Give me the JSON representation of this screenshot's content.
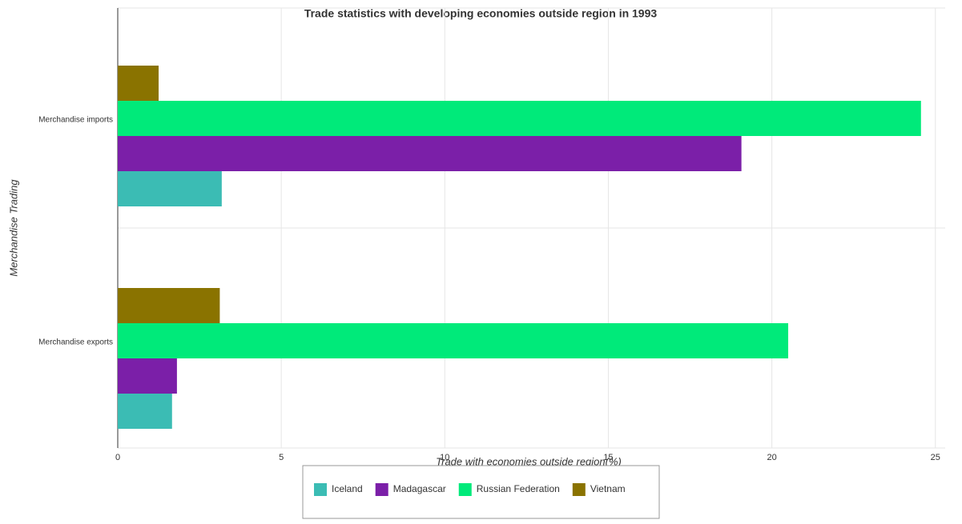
{
  "chart_data": {
    "type": "hbar",
    "title": "Trade statistics with developing economies outside region in 1993",
    "x_label": "Trade with economies outside region(%)",
    "y_label": "Merchandise Trading",
    "categories": [
      "Merchandise exports",
      "Merchandise imports"
    ],
    "series": [
      {
        "name": "Iceland",
        "color": "#3bbcb4",
        "values": [
          1.66,
          3.18
        ]
      },
      {
        "name": "Madagascar",
        "color": "#7b1fa8",
        "values": [
          1.81,
          19.07
        ]
      },
      {
        "name": "Russian Federation",
        "color": "#00ea7a",
        "values": [
          20.5,
          24.56
        ]
      },
      {
        "name": "Vietnam",
        "color": "#8a7300",
        "values": [
          3.12,
          1.25
        ]
      }
    ],
    "xlim": [
      0,
      25.3
    ],
    "xticks": [
      0,
      5,
      10,
      15,
      20,
      25
    ],
    "grid": true,
    "legend": "bottom"
  }
}
